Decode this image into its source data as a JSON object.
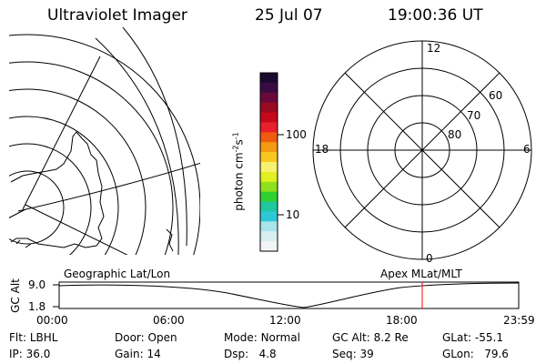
{
  "header": {
    "instrument": "Ultraviolet Imager",
    "date": "25 Jul 07",
    "time": "19:00:36 UT"
  },
  "colorbar": {
    "unit": "photon cm",
    "unit_exp1": "-2",
    "unit_s": "s",
    "unit_exp2": "-1",
    "tick_100": "100",
    "tick_10": "10",
    "colors": [
      "#1a0a2e",
      "#3a0a45",
      "#6a0a3a",
      "#9a0a20",
      "#c40a1a",
      "#e8202a",
      "#f05a10",
      "#f59a10",
      "#f8c820",
      "#f8f070",
      "#e0f020",
      "#90e020",
      "#30d030",
      "#20c8a0",
      "#30c8d8",
      "#a8e4ec",
      "#d8eef2",
      "#f2f4f6"
    ]
  },
  "polar_plot": {
    "hour_labels": {
      "top": "12",
      "left": "18",
      "right": "6",
      "bottom": "0"
    },
    "lat_labels": [
      "60",
      "70",
      "80"
    ]
  },
  "timeline": {
    "left_label": "Geographic Lat/Lon",
    "right_label": "Apex MLat/MLT",
    "axis_label": "GC Alt",
    "y_ticks": [
      "9.0",
      "1.8"
    ],
    "x_ticks": [
      "00:00",
      "06:00",
      "12:00",
      "18:00",
      "23:59"
    ],
    "marker_color": "#ff0000"
  },
  "info": {
    "row1": [
      {
        "label": "Flt:",
        "value": "LBHL"
      },
      {
        "label": "Door:",
        "value": "Open"
      },
      {
        "label": "Mode:",
        "value": "Normal"
      },
      {
        "label": "GC Alt:",
        "value": "8.2 Re"
      },
      {
        "label": "GLat:",
        "value": "-55.1"
      }
    ],
    "row2": [
      {
        "label": "IP:",
        "value": "36.0"
      },
      {
        "label": "Gain:",
        "value": "14"
      },
      {
        "label": "Dsp:",
        "value": "4.8"
      },
      {
        "label": "Seq:",
        "value": "39"
      },
      {
        "label": "GLon:",
        "value": "79.6"
      }
    ]
  }
}
